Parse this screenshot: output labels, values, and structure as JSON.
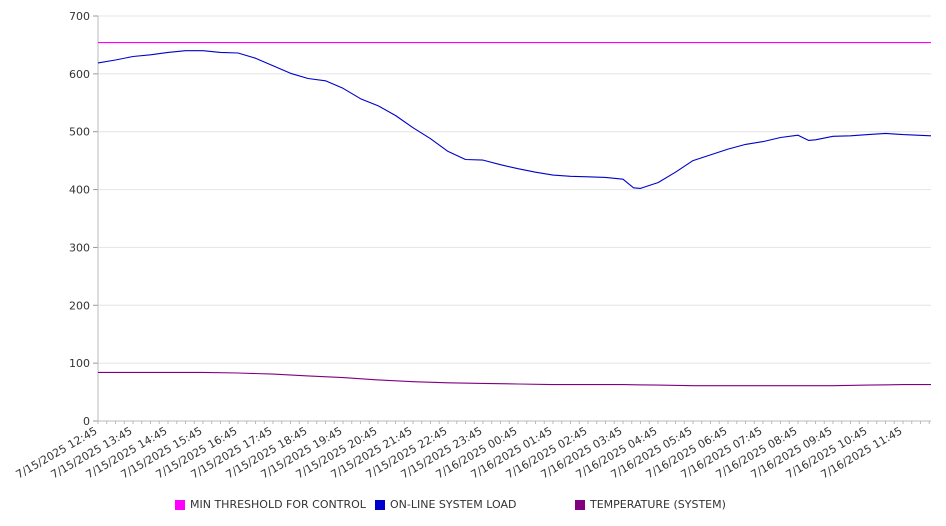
{
  "chart_data": {
    "type": "line",
    "ylim": [
      0,
      700
    ],
    "y_ticks": [
      "0",
      "100",
      "200",
      "300",
      "400",
      "500",
      "600",
      "700"
    ],
    "x_tick_labels": [
      "7/15/2025 12:45",
      "7/15/2025 13:45",
      "7/15/2025 14:45",
      "7/15/2025 15:45",
      "7/15/2025 16:45",
      "7/15/2025 17:45",
      "7/15/2025 18:45",
      "7/15/2025 19:45",
      "7/15/2025 20:45",
      "7/15/2025 21:45",
      "7/15/2025 22:45",
      "7/15/2025 23:45",
      "7/16/2025 00:45",
      "7/16/2025 01:45",
      "7/16/2025 02:45",
      "7/16/2025 03:45",
      "7/16/2025 04:45",
      "7/16/2025 05:45",
      "7/16/2025 06:45",
      "7/16/2025 07:45",
      "7/16/2025 08:45",
      "7/16/2025 09:45",
      "7/16/2025 10:45",
      "7/16/2025 11:45"
    ],
    "x_range_hours": [
      0,
      23.8
    ],
    "grid": true,
    "legend_position": "bottom",
    "series": [
      {
        "name": "MIN THRESHOLD FOR CONTROL",
        "color": "#ff00ff",
        "x_hours": [
          0,
          23.8
        ],
        "values": [
          654,
          654
        ]
      },
      {
        "name": "ON-LINE SYSTEM LOAD",
        "color": "#0000cc",
        "x_hours": [
          0,
          0.5,
          1,
          1.5,
          2,
          2.5,
          3,
          3.5,
          4,
          4.5,
          5,
          5.5,
          6,
          6.5,
          7,
          7.5,
          8,
          8.5,
          9,
          9.5,
          10,
          10.5,
          11,
          11.5,
          12,
          12.5,
          13,
          13.5,
          14,
          14.5,
          15,
          15.3,
          15.5,
          15.8,
          16,
          16.5,
          17,
          17.5,
          18,
          18.5,
          19,
          19.5,
          20,
          20.3,
          20.5,
          21,
          21.5,
          22,
          22.5,
          23,
          23.8
        ],
        "values": [
          619,
          624,
          630,
          633,
          637,
          640,
          640,
          637,
          636,
          627,
          614,
          601,
          592,
          588,
          575,
          557,
          545,
          528,
          507,
          488,
          466,
          452,
          451,
          443,
          436,
          430,
          425,
          423,
          422,
          421,
          418,
          403,
          402,
          408,
          412,
          430,
          450,
          460,
          470,
          478,
          483,
          490,
          494,
          485,
          486,
          492,
          493,
          495,
          497,
          495,
          493
        ]
      },
      {
        "name": "TEMPERATURE (SYSTEM)",
        "color": "#800080",
        "x_hours": [
          0,
          1,
          2,
          3,
          4,
          5,
          6,
          7,
          8,
          9,
          10,
          11,
          12,
          13,
          14,
          15,
          16,
          17,
          18,
          19,
          20,
          21,
          22,
          23,
          23.8
        ],
        "values": [
          84,
          84,
          84,
          84,
          83,
          81,
          78,
          75,
          71,
          68,
          66,
          65,
          64,
          63,
          63,
          63,
          62,
          61,
          61,
          61,
          61,
          61,
          62,
          63,
          63
        ]
      }
    ]
  }
}
